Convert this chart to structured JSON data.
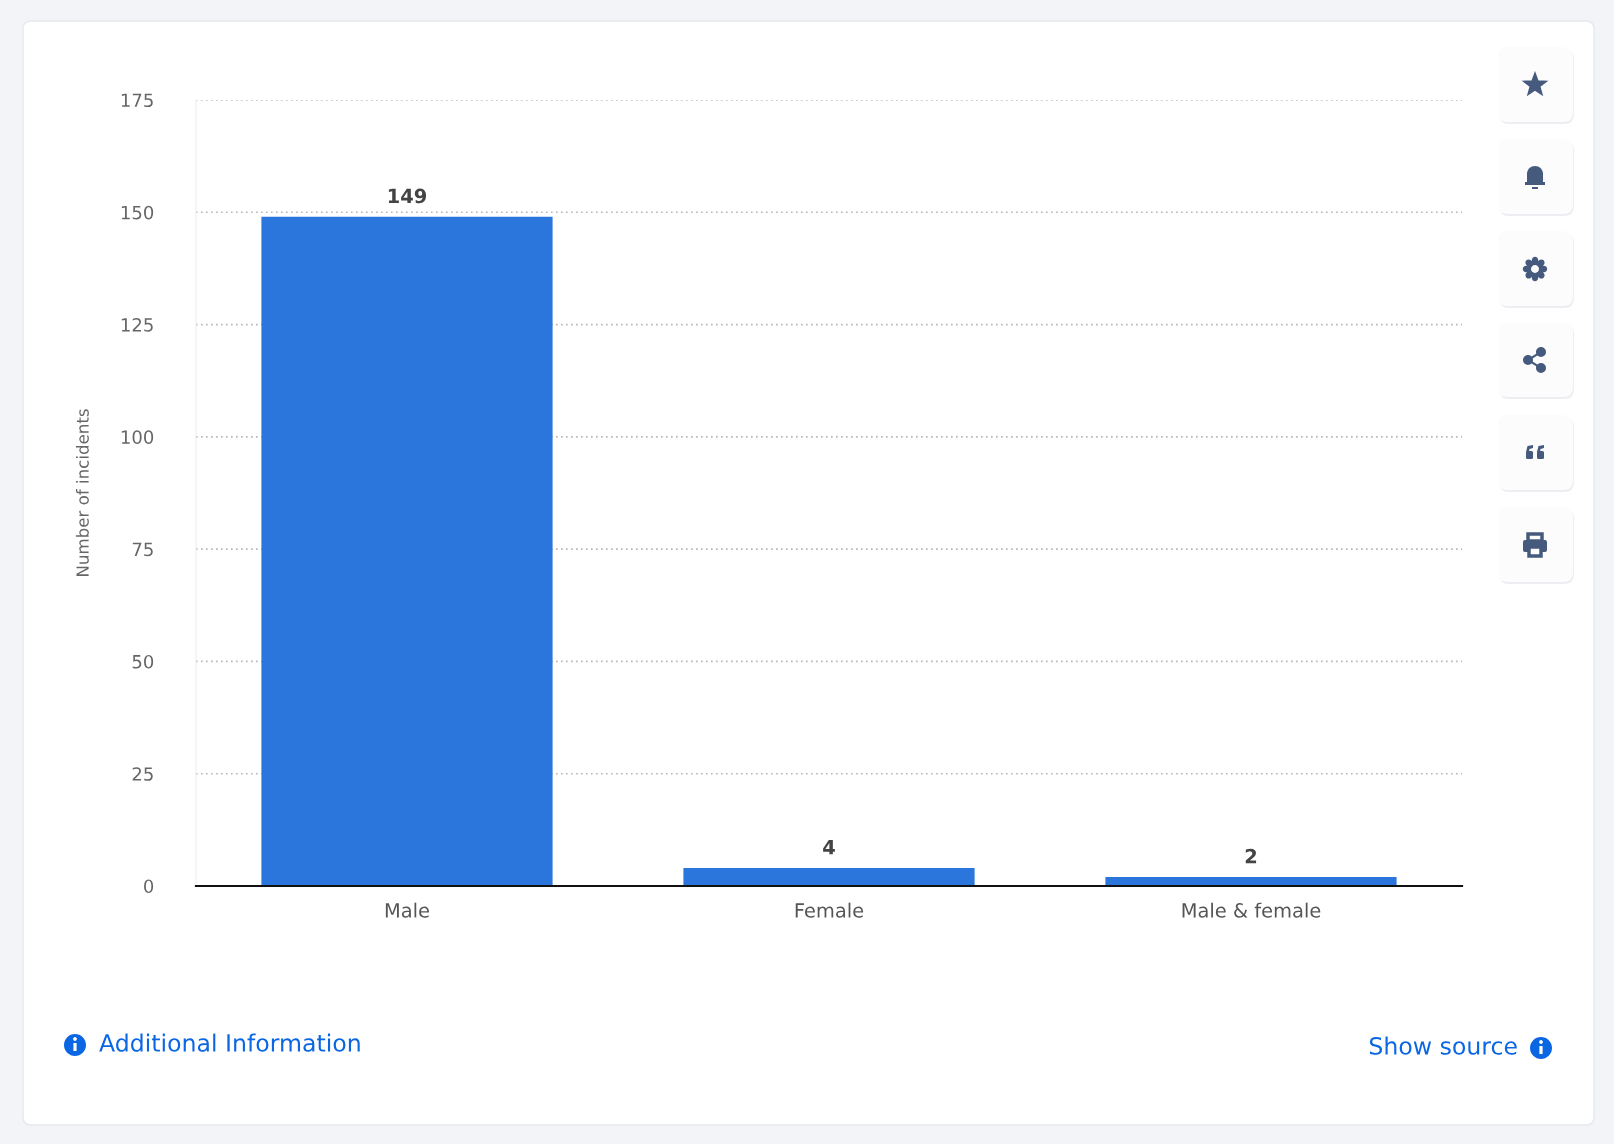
{
  "chart_data": {
    "type": "bar",
    "categories": [
      "Male",
      "Female",
      "Male & female"
    ],
    "values": [
      149,
      4,
      2
    ],
    "color": "#2a76dd",
    "ylabel": "Number of incidents",
    "ylim": [
      0,
      175
    ],
    "yticks": [
      0,
      25,
      50,
      75,
      100,
      125,
      150,
      175
    ],
    "grid": "y",
    "data_labels": true,
    "annotations": [
      "Additional Information",
      "Show source"
    ]
  }
}
